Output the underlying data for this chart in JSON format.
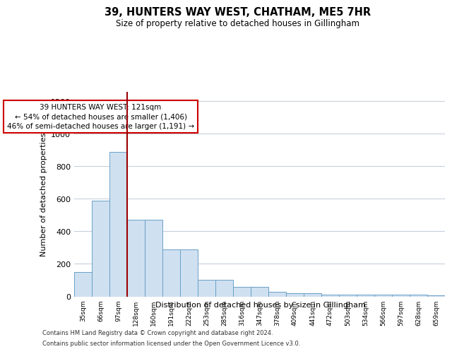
{
  "title": "39, HUNTERS WAY WEST, CHATHAM, ME5 7HR",
  "subtitle": "Size of property relative to detached houses in Gillingham",
  "xlabel": "Distribution of detached houses by size in Gillingham",
  "ylabel": "Number of detached properties",
  "bar_labels": [
    "35sqm",
    "66sqm",
    "97sqm",
    "128sqm",
    "160sqm",
    "191sqm",
    "222sqm",
    "253sqm",
    "285sqm",
    "316sqm",
    "347sqm",
    "378sqm",
    "409sqm",
    "441sqm",
    "472sqm",
    "503sqm",
    "534sqm",
    "566sqm",
    "597sqm",
    "628sqm",
    "659sqm"
  ],
  "bar_heights": [
    150,
    590,
    890,
    470,
    470,
    290,
    290,
    100,
    100,
    60,
    60,
    30,
    20,
    20,
    10,
    10,
    10,
    10,
    10,
    10,
    5
  ],
  "bar_color": "#cfe0f0",
  "bar_edge_color": "#6aa0c8",
  "vline_color": "#990000",
  "annotation_text": "39 HUNTERS WAY WEST: 121sqm\n← 54% of detached houses are smaller (1,406)\n46% of semi-detached houses are larger (1,191) →",
  "annotation_box_color": "#cc0000",
  "ylim": [
    0,
    1260
  ],
  "yticks": [
    0,
    200,
    400,
    600,
    800,
    1000,
    1200
  ],
  "grid_color": "#c8d0dc",
  "background_color": "#ffffff",
  "footer_line1": "Contains HM Land Registry data © Crown copyright and database right 2024.",
  "footer_line2": "Contains public sector information licensed under the Open Government Licence v3.0."
}
